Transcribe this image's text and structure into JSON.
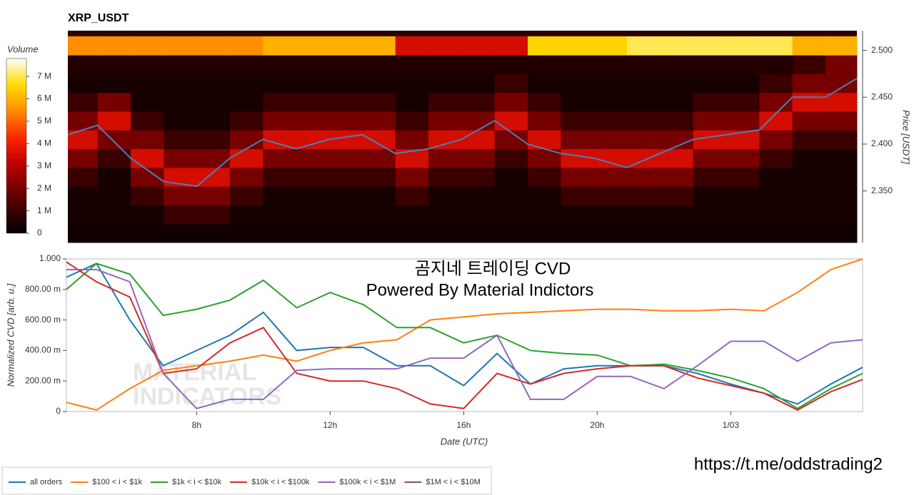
{
  "chart_data": [
    {
      "type": "heatmap",
      "title": "XRP_USDT",
      "ylabel": "Price [USDT]",
      "xlim": [
        4.1,
        27.95
      ],
      "ylim": [
        2.295,
        2.521
      ],
      "yticks": [
        {
          "value": 2.35,
          "label": "2.350"
        },
        {
          "value": 2.4,
          "label": "2.400"
        },
        {
          "value": 2.45,
          "label": "2.450"
        },
        {
          "value": 2.5,
          "label": "2.500"
        }
      ],
      "xbins": [
        4.1,
        5,
        6,
        7,
        8,
        9,
        10,
        11,
        12,
        13,
        14,
        15,
        16,
        17,
        18,
        19,
        20,
        21,
        22,
        23,
        24,
        25,
        26,
        27,
        27.95
      ],
      "ybins": [
        2.295,
        2.315,
        2.335,
        2.355,
        2.375,
        2.395,
        2.415,
        2.435,
        2.455,
        2.475,
        2.495,
        2.515
      ],
      "z": [
        [
          0.3,
          0.3,
          0.3,
          0.3,
          0.3,
          0.3,
          0.3,
          0.3,
          0.3,
          0.3,
          0.3,
          0.3,
          0.3,
          0.3,
          0.3,
          0.3,
          0.3,
          0.3,
          0.3,
          0.3,
          0.3,
          0.3,
          0.3,
          0.3
        ],
        [
          0.4,
          0.4,
          0.4,
          1,
          1,
          0.4,
          0.4,
          0.4,
          0.4,
          0.4,
          0.4,
          0.4,
          0.4,
          0.4,
          0.4,
          0.4,
          0.4,
          0.4,
          0.4,
          0.4,
          0.4,
          0.4,
          0.4,
          0.4
        ],
        [
          0.4,
          0.4,
          1,
          2,
          2,
          1,
          0.4,
          0.4,
          0.4,
          0.4,
          1,
          0.4,
          0.4,
          0.4,
          0.4,
          1,
          1,
          1,
          1,
          0.4,
          0.4,
          0.4,
          0.4,
          0.4
        ],
        [
          1,
          0.4,
          2,
          3.5,
          3.5,
          2,
          1,
          1,
          1,
          1,
          2,
          1,
          1,
          0.4,
          1,
          2,
          2,
          2,
          2,
          1,
          1,
          0.4,
          0.4,
          0.4
        ],
        [
          2,
          1,
          3.5,
          2,
          2,
          3.5,
          2,
          2,
          2,
          2,
          3.5,
          2,
          2,
          1,
          2,
          3.5,
          3.5,
          3.5,
          3.5,
          2,
          2,
          1,
          0.4,
          0.4
        ],
        [
          3.5,
          2,
          2,
          1,
          1,
          2,
          3.5,
          3.5,
          3.5,
          3.5,
          2,
          3.5,
          3.5,
          2,
          3.5,
          2,
          2,
          2,
          2,
          3.5,
          3.5,
          2,
          1,
          1
        ],
        [
          2,
          3.5,
          1,
          0.4,
          0.4,
          1,
          2,
          2,
          2,
          2,
          1,
          2,
          2,
          3.5,
          2,
          1,
          1,
          1,
          1,
          2,
          2,
          3.5,
          2,
          2
        ],
        [
          1,
          2,
          0.4,
          0.4,
          0.4,
          0.4,
          1,
          1,
          1,
          1,
          0.4,
          1,
          1,
          2,
          1,
          0.4,
          0.4,
          0.4,
          0.4,
          1,
          1,
          2,
          3.5,
          3.5
        ],
        [
          0.4,
          0.4,
          0.4,
          0.4,
          0.4,
          0.4,
          0.4,
          0.4,
          0.4,
          0.4,
          0.4,
          0.4,
          0.4,
          1,
          0.4,
          0.4,
          0.4,
          0.4,
          0.4,
          0.4,
          0.4,
          1,
          2,
          2
        ],
        [
          0.6,
          0.6,
          0.6,
          0.6,
          0.6,
          0.6,
          0.6,
          0.6,
          0.6,
          0.6,
          0.6,
          0.6,
          0.6,
          0.6,
          0.6,
          0.6,
          0.6,
          0.6,
          0.6,
          0.6,
          0.6,
          0.6,
          1,
          2
        ],
        [
          5.5,
          5.5,
          5.5,
          5.5,
          5.5,
          5.5,
          6,
          6,
          6,
          6,
          3.5,
          3.5,
          3.5,
          3.5,
          6.5,
          6.5,
          6.5,
          7,
          7,
          7,
          7,
          7,
          6,
          6
        ]
      ],
      "colorbar": {
        "label": "Volume",
        "lim": [
          0,
          7.8
        ],
        "ticks": [
          0,
          {
            "value": 1,
            "label": "1 M"
          },
          {
            "value": 2,
            "label": "2 M"
          },
          {
            "value": 3,
            "label": "3 M"
          },
          {
            "value": 4,
            "label": "4 M"
          },
          {
            "value": 5,
            "label": "5 M"
          },
          {
            "value": 6,
            "label": "6 M"
          },
          {
            "value": 7,
            "label": "7 M"
          }
        ]
      },
      "x": [
        4.1,
        5,
        6,
        7,
        8,
        9,
        10,
        11,
        12,
        13,
        14,
        15,
        16,
        17,
        18,
        19,
        20,
        21,
        22,
        23,
        24,
        25,
        26,
        27,
        27.95
      ],
      "line": {
        "color": "#4a80b8",
        "values": [
          2.41,
          2.42,
          2.385,
          2.36,
          2.355,
          2.385,
          2.405,
          2.395,
          2.405,
          2.41,
          2.39,
          2.395,
          2.405,
          2.425,
          2.4,
          2.39,
          2.385,
          2.375,
          2.39,
          2.405,
          2.41,
          2.415,
          2.45,
          2.45,
          2.47
        ]
      }
    },
    {
      "type": "line",
      "title": "곰지네 트레이딩 CVD",
      "subtitle": "Powered By Material Indictors",
      "xlabel": "Date (UTC)",
      "ylabel": "Normalized CVD [arb. u.]",
      "xlim": [
        4.1,
        27.95
      ],
      "ylim": [
        0,
        1
      ],
      "xticks": [
        {
          "value": 8,
          "label": "8h"
        },
        {
          "value": 12,
          "label": "12h"
        },
        {
          "value": 16,
          "label": "16h"
        },
        {
          "value": 20,
          "label": "20h"
        },
        {
          "value": 24,
          "label": "1/03"
        }
      ],
      "yticks": [
        0,
        {
          "value": 0.2,
          "label": "200.00 m"
        },
        {
          "value": 0.4,
          "label": "400.00 m"
        },
        {
          "value": 0.6,
          "label": "600.00 m"
        },
        {
          "value": 0.8,
          "label": "800.00 m"
        },
        {
          "value": 1,
          "label": "1.000"
        }
      ],
      "watermark": [
        "MATERIAL",
        "INDICATORS"
      ],
      "x": [
        4.1,
        5,
        6,
        7,
        8,
        9,
        10,
        11,
        12,
        13,
        14,
        15,
        16,
        17,
        18,
        19,
        20,
        21,
        22,
        23,
        24,
        25,
        26,
        27,
        27.95
      ],
      "series": [
        {
          "name": "all orders",
          "color": "#1f77b4",
          "values": [
            0.88,
            0.97,
            0.6,
            0.3,
            0.4,
            0.5,
            0.65,
            0.4,
            0.42,
            0.42,
            0.3,
            0.3,
            0.17,
            0.38,
            0.18,
            0.28,
            0.3,
            0.3,
            0.3,
            0.25,
            0.18,
            0.12,
            0.05,
            0.18,
            0.29
          ]
        },
        {
          "name": "$100 < i < $1k",
          "color": "#ff7f0e",
          "values": [
            0.06,
            0.01,
            0.15,
            0.27,
            0.3,
            0.33,
            0.37,
            0.33,
            0.4,
            0.45,
            0.47,
            0.6,
            0.62,
            0.64,
            0.65,
            0.66,
            0.67,
            0.67,
            0.66,
            0.66,
            0.67,
            0.66,
            0.78,
            0.93,
            1.0
          ]
        },
        {
          "name": "$1k < i < $10k",
          "color": "#2ca02c",
          "values": [
            0.8,
            0.97,
            0.9,
            0.63,
            0.67,
            0.73,
            0.86,
            0.68,
            0.78,
            0.7,
            0.55,
            0.55,
            0.45,
            0.5,
            0.4,
            0.38,
            0.37,
            0.3,
            0.31,
            0.27,
            0.22,
            0.15,
            0.02,
            0.15,
            0.25
          ]
        },
        {
          "name": "$10k < i < $100k",
          "color": "#d62728",
          "values": [
            0.98,
            0.85,
            0.75,
            0.25,
            0.28,
            0.45,
            0.55,
            0.25,
            0.2,
            0.2,
            0.15,
            0.05,
            0.02,
            0.25,
            0.18,
            0.25,
            0.28,
            0.3,
            0.3,
            0.22,
            0.17,
            0.12,
            0.01,
            0.13,
            0.21
          ]
        },
        {
          "name": "$100k < i < $1M",
          "color": "#9467bd",
          "values": [
            0.93,
            0.93,
            0.85,
            0.25,
            0.02,
            0.08,
            0.08,
            0.27,
            0.28,
            0.28,
            0.28,
            0.35,
            0.35,
            0.5,
            0.08,
            0.08,
            0.23,
            0.23,
            0.15,
            0.3,
            0.46,
            0.46,
            0.33,
            0.45,
            0.47
          ]
        },
        {
          "name": "$1M < i < $10M",
          "color": "#8c564b",
          "values": [
            null,
            null,
            null,
            null,
            null,
            null,
            null,
            null,
            null,
            null,
            null,
            null,
            null,
            null,
            null,
            null,
            null,
            null,
            null,
            null,
            null,
            null,
            null,
            null,
            null
          ]
        }
      ]
    }
  ],
  "footer_link": "https://t.me/oddstrading2"
}
